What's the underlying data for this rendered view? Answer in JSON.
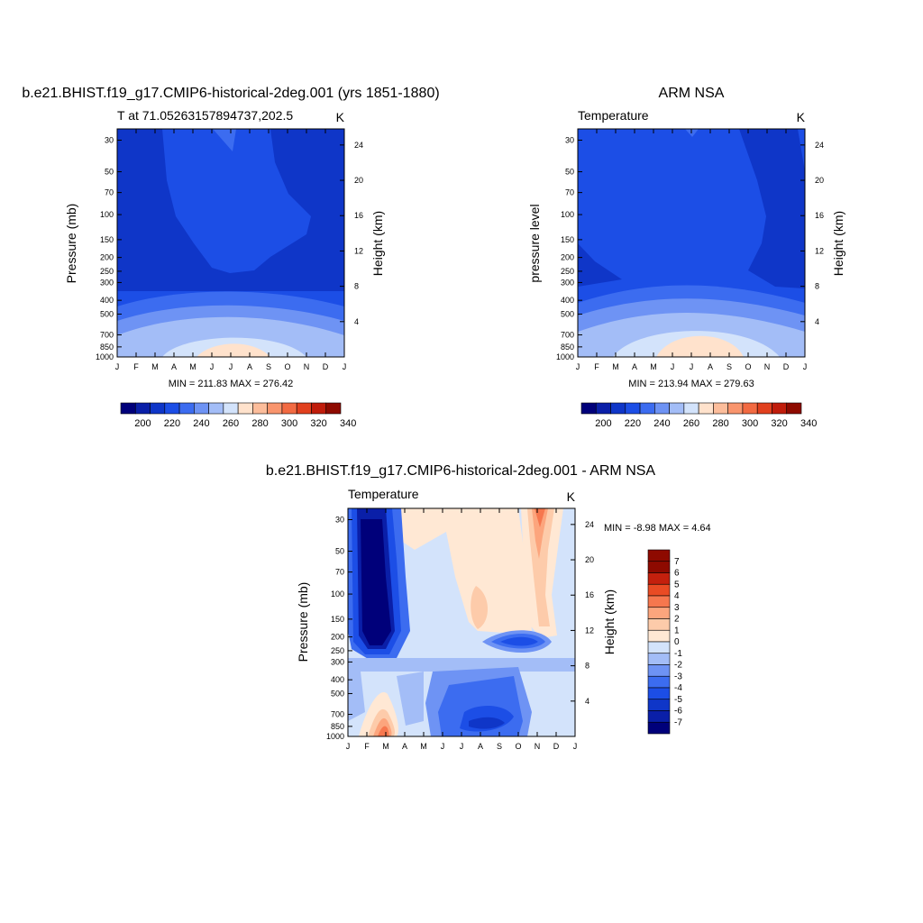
{
  "months": [
    "J",
    "F",
    "M",
    "A",
    "M",
    "J",
    "J",
    "A",
    "S",
    "O",
    "N",
    "D",
    "J"
  ],
  "pressure_ticks": [
    30,
    50,
    70,
    100,
    150,
    200,
    250,
    300,
    400,
    500,
    700,
    850,
    1000
  ],
  "height_ticks": [
    4,
    8,
    12,
    16,
    20,
    24
  ],
  "main_palette": [
    "#00007a",
    "#0a1fa8",
    "#0f36c8",
    "#1c4ee6",
    "#3c6cf0",
    "#6e93f4",
    "#a3bdf7",
    "#d3e3fb",
    "#ffe2cc",
    "#fcbd9b",
    "#f9956d",
    "#f26a42",
    "#e1401e",
    "#c01c0b",
    "#8e0a00"
  ],
  "diff_palette": [
    "#00007a",
    "#0a1fa8",
    "#0f36c8",
    "#1c4ee6",
    "#3c6cf0",
    "#6e93f4",
    "#a3bdf7",
    "#d3e3fb",
    "#ffe8d4",
    "#fdcbaa",
    "#fca57d",
    "#f6774e",
    "#e94b24",
    "#c4200d",
    "#8e0a00"
  ],
  "panels": [
    {
      "id": "model",
      "title": "b.e21.BHIST.f19_g17.CMIP6-historical-2deg.001 (yrs 1851-1880)",
      "left_label": "T at 71.05263157894737,202.5",
      "right_label": "K",
      "ylabel": "Pressure (mb)",
      "ylabel_right": "Height (km)",
      "minmax": "MIN = 211.83 MAX = 276.42"
    },
    {
      "id": "obs",
      "title": "ARM NSA",
      "left_label": "Temperature",
      "right_label": "K",
      "ylabel": "pressure level",
      "ylabel_right": "Height (km)",
      "minmax": "MIN = 213.94 MAX = 279.63"
    },
    {
      "id": "diff",
      "title": "b.e21.BHIST.f19_g17.CMIP6-historical-2deg.001 - ARM NSA",
      "left_label": "Temperature",
      "right_label": "K",
      "ylabel": "Pressure (mb)",
      "ylabel_right": "Height (km)",
      "minmax": "MIN =  -8.98 MAX =   4.64"
    }
  ],
  "colorbar_main": {
    "labels": [
      "200",
      "220",
      "240",
      "260",
      "280",
      "300",
      "320",
      "340"
    ],
    "orientation": "horizontal"
  },
  "colorbar_diff": {
    "labels": [
      "7",
      "6",
      "5",
      "4",
      "3",
      "2",
      "1",
      "0",
      "-1",
      "-2",
      "-3",
      "-4",
      "-5",
      "-6",
      "-7"
    ],
    "orientation": "vertical"
  },
  "chart_data": [
    {
      "type": "heatmap",
      "title": "b.e21.BHIST.f19_g17.CMIP6-historical-2deg.001 (yrs 1851-1880)",
      "variable": "T at 71.05263157894737,202.5",
      "units": "K",
      "x": [
        "J",
        "F",
        "M",
        "A",
        "M",
        "J",
        "J",
        "A",
        "S",
        "O",
        "N",
        "D",
        "J"
      ],
      "y_pressure_mb": [
        30,
        50,
        70,
        100,
        150,
        200,
        250,
        300,
        400,
        500,
        700,
        850,
        1000
      ],
      "ylabel": "Pressure (mb)",
      "ylabel_right": "Height (km)",
      "levels": [
        200,
        210,
        220,
        230,
        240,
        250,
        260,
        270,
        280,
        290,
        300,
        310,
        320,
        330,
        340
      ],
      "values_K": [
        [
          213,
          213,
          213,
          217,
          219,
          221,
          219,
          219,
          215,
          213,
          213,
          213,
          213
        ],
        [
          213,
          213,
          213,
          217,
          219,
          220,
          220,
          219,
          216,
          213,
          213,
          213,
          213
        ],
        [
          213,
          213,
          213,
          217,
          219,
          220,
          220,
          219,
          218,
          214,
          213,
          213,
          213
        ],
        [
          213,
          213,
          213,
          217,
          219,
          220,
          220,
          219,
          219,
          216,
          214,
          213,
          213
        ],
        [
          213,
          213,
          213,
          217,
          219,
          220,
          220,
          219,
          219,
          217,
          216,
          213,
          213
        ],
        [
          213,
          213,
          214,
          216,
          219,
          220,
          220,
          219,
          219,
          217,
          214,
          213,
          213
        ],
        [
          214,
          214,
          214,
          215,
          218,
          219,
          219,
          218,
          215,
          215,
          214,
          214,
          214
        ],
        [
          216,
          216,
          216,
          218,
          219,
          219,
          219,
          219,
          218,
          217,
          216,
          216,
          216
        ],
        [
          221,
          221,
          222,
          224,
          226,
          227,
          227,
          226,
          224,
          222,
          221,
          221,
          221
        ],
        [
          232,
          232,
          233,
          236,
          238,
          240,
          240,
          238,
          235,
          233,
          232,
          232,
          232
        ],
        [
          245,
          245,
          247,
          250,
          252,
          254,
          254,
          252,
          249,
          246,
          245,
          245,
          245
        ],
        [
          252,
          252,
          254,
          259,
          264,
          266,
          266,
          264,
          258,
          254,
          252,
          252,
          252
        ],
        [
          255,
          255,
          257,
          263,
          270,
          275,
          276,
          272,
          264,
          257,
          255,
          255,
          255
        ]
      ],
      "min": 211.83,
      "max": 276.42
    },
    {
      "type": "heatmap",
      "title": "ARM NSA",
      "variable": "Temperature",
      "units": "K",
      "x": [
        "J",
        "F",
        "M",
        "A",
        "M",
        "J",
        "J",
        "A",
        "S",
        "O",
        "N",
        "D",
        "J"
      ],
      "y_pressure_mb": [
        30,
        50,
        70,
        100,
        150,
        200,
        250,
        300,
        400,
        500,
        700,
        850,
        1000
      ],
      "ylabel": "pressure level",
      "ylabel_right": "Height (km)",
      "levels": [
        200,
        210,
        220,
        230,
        240,
        250,
        260,
        270,
        280,
        290,
        300,
        310,
        320,
        330,
        340
      ],
      "values_K": [
        [
          216,
          216,
          217,
          218,
          219,
          220,
          220,
          219,
          218,
          216,
          216,
          216,
          215
        ],
        [
          216,
          216,
          217,
          218,
          219,
          220,
          220,
          219,
          219,
          217,
          216,
          216,
          215
        ],
        [
          216,
          216,
          217,
          218,
          219,
          220,
          220,
          219,
          219,
          218,
          216,
          216,
          215
        ],
        [
          216,
          217,
          218,
          218,
          219,
          220,
          220,
          219,
          219,
          219,
          217,
          216,
          216
        ],
        [
          216,
          217,
          218,
          218,
          219,
          220,
          220,
          219,
          219,
          219,
          218,
          216,
          216
        ],
        [
          214,
          217,
          218,
          218,
          219,
          220,
          220,
          219,
          219,
          218,
          217,
          216,
          216
        ],
        [
          213,
          216,
          217,
          218,
          219,
          219,
          219,
          218,
          217,
          217,
          216,
          216,
          215
        ],
        [
          214,
          216,
          217,
          218,
          219,
          219,
          219,
          219,
          218,
          217,
          216,
          216,
          215
        ],
        [
          222,
          222,
          224,
          226,
          228,
          229,
          229,
          228,
          226,
          224,
          222,
          222,
          222
        ],
        [
          234,
          234,
          236,
          238,
          241,
          243,
          243,
          241,
          238,
          235,
          234,
          234,
          234
        ],
        [
          246,
          246,
          248,
          251,
          254,
          257,
          257,
          255,
          251,
          248,
          246,
          246,
          246
        ],
        [
          251,
          251,
          254,
          260,
          266,
          270,
          271,
          268,
          261,
          255,
          251,
          251,
          251
        ],
        [
          252,
          252,
          255,
          263,
          272,
          278,
          279,
          276,
          267,
          258,
          252,
          252,
          252
        ]
      ],
      "min": 213.94,
      "max": 279.63
    },
    {
      "type": "heatmap",
      "title": "b.e21.BHIST.f19_g17.CMIP6-historical-2deg.001 - ARM NSA",
      "variable": "Temperature",
      "units": "K",
      "x": [
        "J",
        "F",
        "M",
        "A",
        "M",
        "J",
        "J",
        "A",
        "S",
        "O",
        "N",
        "D",
        "J"
      ],
      "y_pressure_mb": [
        30,
        50,
        70,
        100,
        150,
        200,
        250,
        300,
        400,
        500,
        700,
        850,
        1000
      ],
      "ylabel": "Pressure (mb)",
      "ylabel_right": "Height (km)",
      "levels": [
        -7,
        -6,
        -5,
        -4,
        -3,
        -2,
        -1,
        0,
        1,
        2,
        3,
        4,
        5,
        6,
        7
      ],
      "values_K": [
        [
          -4,
          -7,
          -7,
          -2,
          0.4,
          0.2,
          0.4,
          0.4,
          -0.6,
          0.4,
          4,
          -1.5,
          -2
        ],
        [
          -3,
          -8,
          -6,
          -1,
          0.4,
          0.4,
          -0.6,
          0.4,
          -0.5,
          0.6,
          3,
          -1.2,
          -1.5
        ],
        [
          -3,
          -8,
          -6,
          -1,
          -0.6,
          -0.6,
          -0.6,
          -0.6,
          -0.5,
          0.6,
          2.5,
          -1,
          -1.5
        ],
        [
          -3,
          -8,
          -6,
          -1,
          -1.4,
          -0.6,
          -0.6,
          -0.6,
          -0.4,
          0.8,
          2,
          -1,
          -1.5
        ],
        [
          -3,
          -8,
          -6,
          -1,
          -0.6,
          -0.6,
          -0.6,
          0.6,
          -0.4,
          1.2,
          1.5,
          -1,
          -1.5
        ],
        [
          -3,
          -8.5,
          -5,
          -2,
          -1.5,
          -1.2,
          -1.2,
          -1.5,
          -5,
          -3,
          -1,
          -1,
          -1.5
        ],
        [
          -3,
          -4,
          -4,
          -2.5,
          -2,
          -1.5,
          -1.5,
          -1.5,
          -2,
          -2,
          -1,
          -1,
          -1.5
        ],
        [
          -2,
          -2,
          -2,
          -2,
          -2,
          -2,
          -2,
          -2,
          -2,
          -2,
          -1,
          -1,
          -1.5
        ],
        [
          -1.5,
          -2,
          -1.5,
          -2.5,
          -2,
          -3,
          -3,
          -3.5,
          -3,
          -2,
          -1.5,
          -1,
          -1.5
        ],
        [
          -1.5,
          -2,
          -1,
          -2.5,
          -2,
          -3,
          -4,
          -4.5,
          -3.5,
          -2,
          -1.5,
          -1,
          -1.5
        ],
        [
          -1,
          -0.5,
          1,
          -1.5,
          -2,
          -3,
          -4,
          -4.5,
          -3,
          -1.5,
          -1,
          -1,
          -1.5
        ],
        [
          -1,
          1,
          3,
          -0.5,
          -1.5,
          -3,
          -4,
          -5,
          -3,
          -1.5,
          -1,
          -1,
          -1.5
        ],
        [
          0.5,
          2,
          4.6,
          0.5,
          -1,
          -4,
          -5,
          -5.5,
          -3,
          -1.5,
          -1,
          -1,
          -1.5
        ]
      ],
      "min": -8.98,
      "max": 4.64
    }
  ]
}
